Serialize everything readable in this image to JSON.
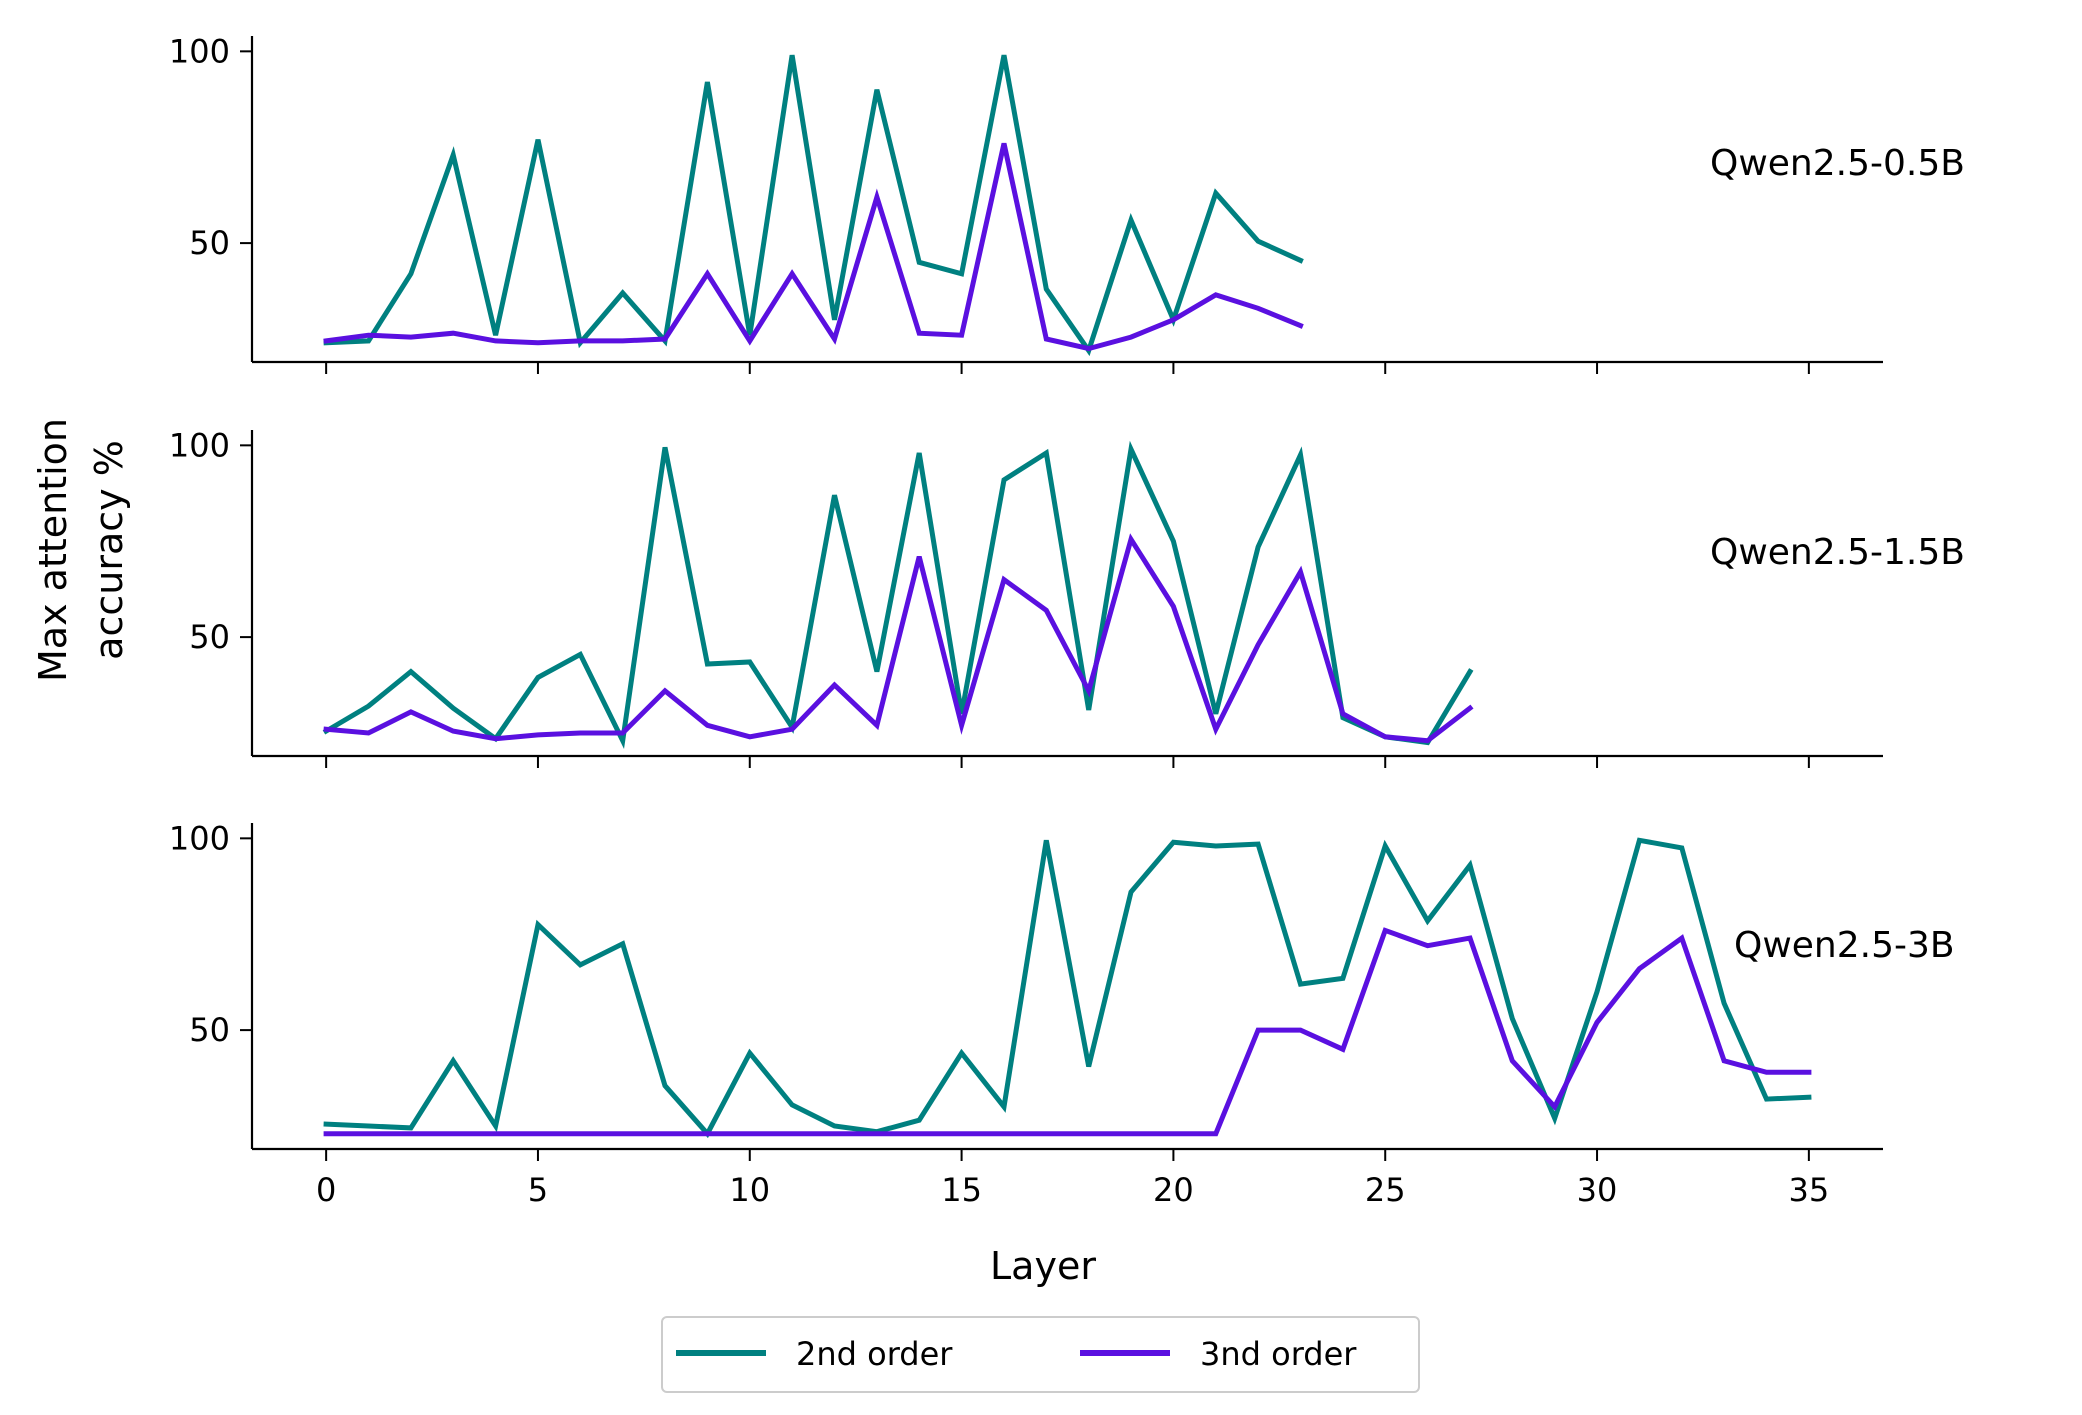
{
  "chart_data": {
    "type": "line",
    "xlabel": "Layer",
    "ylabel": [
      "Max attention",
      "accuracy %"
    ],
    "xlim": [
      -1.75,
      36.75
    ],
    "ylim": [
      19,
      104
    ],
    "xticks": [
      0,
      5,
      10,
      15,
      20,
      25,
      30,
      35
    ],
    "yticks": [
      50,
      100
    ],
    "legend": {
      "placement": "bottom-center",
      "entries": [
        {
          "name": "2nd order",
          "color": "#008080"
        },
        {
          "name": "3nd order",
          "color": "#5a10e0"
        }
      ]
    },
    "panels": [
      {
        "label": "Qwen2.5-0.5B",
        "series": [
          {
            "name": "2nd order",
            "color": "#008080",
            "values": [
              24,
              24.5,
              42,
              73,
              26,
              77,
              24,
              37,
              24.5,
              92,
              26,
              99,
              30,
              90,
              45,
              42,
              99,
              38,
              22,
              56,
              30,
              63,
              50.5,
              45.5
            ]
          },
          {
            "name": "3nd order",
            "color": "#5a10e0",
            "values": [
              24.5,
              26,
              25.5,
              26.5,
              24.5,
              24,
              24.5,
              24.5,
              25,
              42,
              24.5,
              42,
              25,
              62,
              26.5,
              26,
              76,
              25,
              22.5,
              25.5,
              30,
              36.5,
              33,
              28.5
            ]
          }
        ]
      },
      {
        "label": "Qwen2.5-1.5B",
        "series": [
          {
            "name": "2nd order",
            "color": "#008080",
            "values": [
              25.5,
              32,
              41,
              31.5,
              23.5,
              39.5,
              45.5,
              23,
              99.5,
              43,
              43.5,
              26.5,
              87,
              41,
              98,
              30,
              91,
              98,
              31,
              99,
              75,
              30,
              73.5,
              97.5,
              29,
              24,
              22.5,
              41
            ]
          },
          {
            "name": "3nd order",
            "color": "#5a10e0",
            "values": [
              26,
              25,
              30.5,
              25.5,
              23.5,
              24.5,
              25,
              25,
              36,
              27,
              24,
              26,
              37.5,
              27,
              71,
              27,
              65,
              57,
              36,
              75.5,
              58,
              26,
              48,
              67,
              30,
              24,
              23,
              31.5
            ]
          }
        ]
      },
      {
        "label": "Qwen2.5-3B",
        "series": [
          {
            "name": "2nd order",
            "color": "#008080",
            "values": [
              25.5,
              25,
              24.5,
              42,
              25,
              77.5,
              67,
              72.5,
              35.5,
              23,
              44,
              30.5,
              25,
              23.5,
              26.5,
              44,
              30,
              99.5,
              40.5,
              86,
              99,
              98,
              98.5,
              62,
              63.5,
              98,
              78.5,
              93,
              53,
              27,
              60,
              99.5,
              97.5,
              57,
              32,
              32.5
            ]
          },
          {
            "name": "3nd order",
            "color": "#5a10e0",
            "values": [
              23,
              23,
              23,
              23,
              23,
              23,
              23,
              23,
              23,
              23,
              23,
              23,
              23,
              23,
              23,
              23,
              23,
              23,
              23,
              23,
              23,
              23,
              50,
              50,
              45,
              76,
              72,
              74,
              42,
              30,
              52,
              66,
              74,
              42,
              39,
              39
            ]
          }
        ]
      }
    ]
  }
}
